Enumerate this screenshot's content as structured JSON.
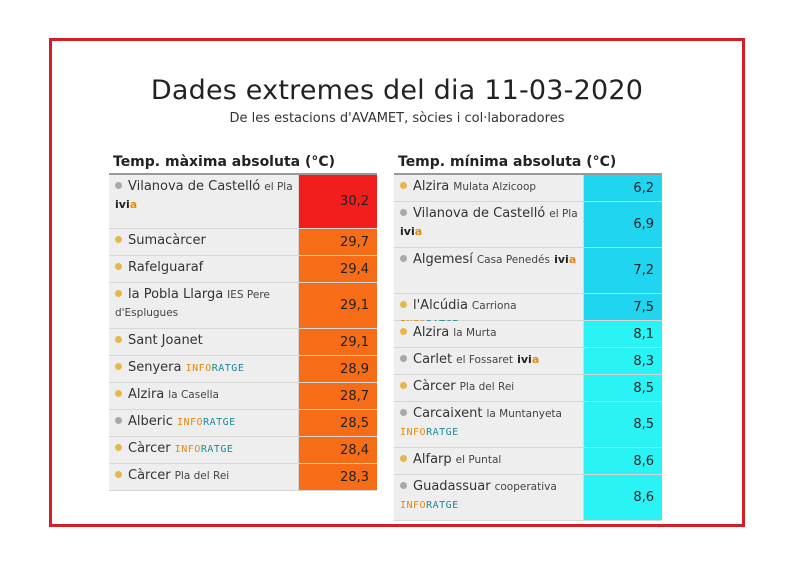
{
  "title": "Dades extremes del dia 11-03-2020",
  "subtitle": "De les estacions d'AVAMET, sòcies i col·laboradores",
  "colors": {
    "frame": "#d41f26",
    "dot_gold": "#e6b84a",
    "dot_gray": "#a8a8a8",
    "max_top": "#f21d1d",
    "max": "#f76d17",
    "min_dark": "#20d5f0",
    "min_light": "#2af3f6"
  },
  "max_table": {
    "header": "Temp. màxima absoluta (°C)",
    "rows": [
      {
        "name": "Vilanova de Castelló",
        "sub": "el Pla",
        "ivia": "ivi",
        "ivia_a": "a",
        "value": "30,2",
        "dot": "gray",
        "color": "#f21d1d",
        "height": 53
      },
      {
        "name": "Sumacàrcer",
        "value": "29,7",
        "dot": "gold",
        "color": "#f76d17",
        "height": 26
      },
      {
        "name": "Rafelguaraf",
        "value": "29,4",
        "dot": "gold",
        "color": "#f76d17",
        "height": 26
      },
      {
        "name": "la Pobla Llarga",
        "sub": "IES Pere d'Esplugues",
        "value": "29,1",
        "dot": "gold",
        "color": "#f76d17",
        "height": 45
      },
      {
        "name": "Sant Joanet",
        "value": "29,1",
        "dot": "gold",
        "color": "#f76d17",
        "height": 26
      },
      {
        "name": "Senyera",
        "infor_a": "INFO",
        "infor_b": "RATGE",
        "value": "28,9",
        "dot": "gold",
        "color": "#f76d17",
        "height": 26
      },
      {
        "name": "Alzira",
        "sub": "la Casella",
        "value": "28,7",
        "dot": "gold",
        "color": "#f76d17",
        "height": 26
      },
      {
        "name": "Alberic",
        "infor_a": "INFO",
        "infor_b": "RATGE",
        "value": "28,5",
        "dot": "gray",
        "color": "#f76d17",
        "height": 26
      },
      {
        "name": "Càrcer",
        "infor_a": "INFO",
        "infor_b": "RATGE",
        "value": "28,4",
        "dot": "gold",
        "color": "#f76d17",
        "height": 26
      },
      {
        "name": "Càrcer",
        "sub": "Pla del Rei",
        "value": "28,3",
        "dot": "gold",
        "color": "#f76d17",
        "height": 26
      }
    ]
  },
  "min_table": {
    "header": "Temp. mínima absoluta (°C)",
    "rows": [
      {
        "name": "Alzira",
        "sub": "Mulata Alzicoop",
        "value": "6,2",
        "dot": "gold",
        "color": "#20d5f0",
        "height": 26
      },
      {
        "name": "Vilanova de Castelló",
        "sub": "el Pla",
        "ivia": "ivi",
        "ivia_a": "a",
        "value": "6,9",
        "dot": "gray",
        "color": "#20d5f0",
        "height": 45
      },
      {
        "name": "Algemesí",
        "sub": "Casa Penedés",
        "ivia": "ivi",
        "ivia_a": "a",
        "value": "7,2",
        "dot": "gray",
        "color": "#20d5f0",
        "height": 45
      },
      {
        "name": "l'Alcúdia",
        "sub": "Carriona",
        "infor_a": "INFO",
        "infor_b": "RATGE",
        "value": "7,5",
        "dot": "gold",
        "color": "#20d5f0",
        "height": 26
      },
      {
        "name": "Alzira",
        "sub": "la Murta",
        "value": "8,1",
        "dot": "gold",
        "color": "#2af3f6",
        "height": 26
      },
      {
        "name": "Carlet",
        "sub": "el Fossaret",
        "ivia": "ivi",
        "ivia_a": "a",
        "value": "8,3",
        "dot": "gray",
        "color": "#2af3f6",
        "height": 26
      },
      {
        "name": "Càrcer",
        "sub": "Pla del Rei",
        "value": "8,5",
        "dot": "gold",
        "color": "#2af3f6",
        "height": 26
      },
      {
        "name": "Carcaixent",
        "sub": "la Muntanyeta",
        "infor_a": "INFO",
        "infor_b": "RATGE",
        "value": "8,5",
        "dot": "gray",
        "color": "#2af3f6",
        "height": 45
      },
      {
        "name": "Alfarp",
        "sub": "el Puntal",
        "value": "8,6",
        "dot": "gold",
        "color": "#2af3f6",
        "height": 26
      },
      {
        "name": "Guadassuar",
        "sub": "cooperativa",
        "infor_a": "INFO",
        "infor_b": "RATGE",
        "value": "8,6",
        "dot": "gray",
        "color": "#2af3f6",
        "height": 45
      }
    ]
  }
}
